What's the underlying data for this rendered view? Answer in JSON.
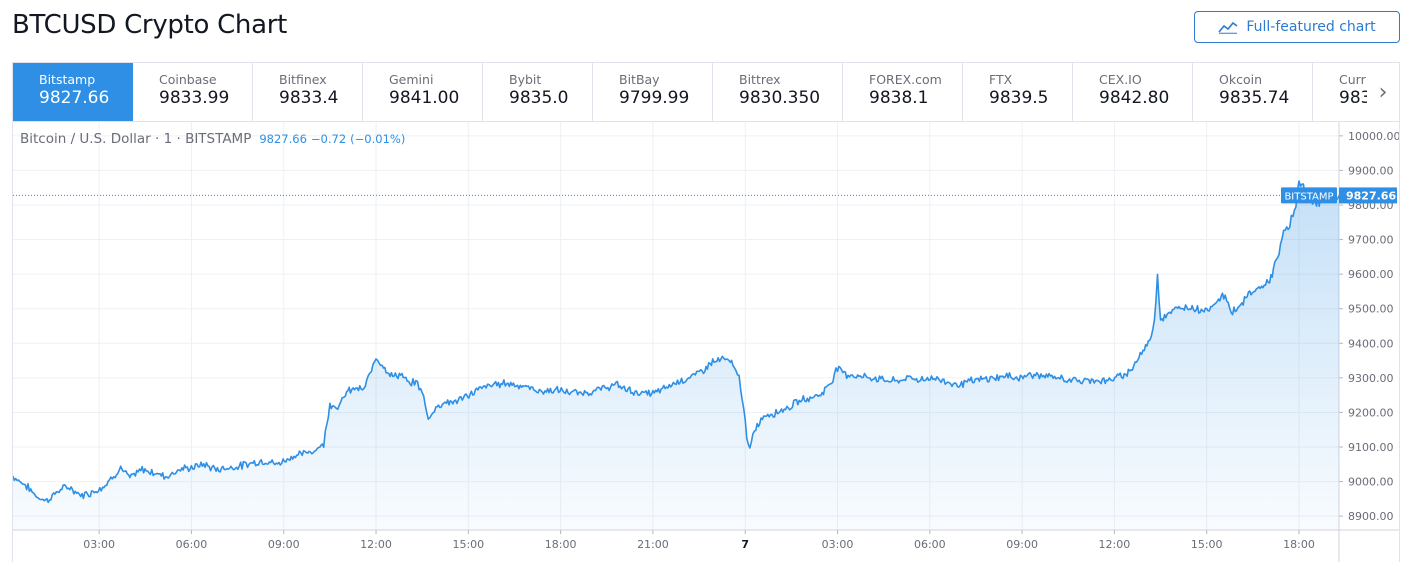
{
  "page": {
    "title": "BTCUSD Crypto Chart",
    "full_chart_label": "Full-featured chart"
  },
  "exchanges": [
    {
      "name": "Bitstamp",
      "price": "9827.66",
      "active": true
    },
    {
      "name": "Coinbase",
      "price": "9833.99"
    },
    {
      "name": "Bitfinex",
      "price": "9833.4"
    },
    {
      "name": "Gemini",
      "price": "9841.00"
    },
    {
      "name": "Bybit",
      "price": "9835.0"
    },
    {
      "name": "BitBay",
      "price": "9799.99"
    },
    {
      "name": "Bittrex",
      "price": "9830.350"
    },
    {
      "name": "FOREX.com",
      "price": "9838.1"
    },
    {
      "name": "FTX",
      "price": "9839.5"
    },
    {
      "name": "CEX.IO",
      "price": "9842.80"
    },
    {
      "name": "Okcoin",
      "price": "9835.74"
    },
    {
      "name": "Curr",
      "price": "983"
    }
  ],
  "legend": {
    "symbol": "Bitcoin / U.S. Dollar · 1 · BITSTAMP",
    "last": "9827.66",
    "change": "−0.72",
    "change_pct": "(−0.01%)"
  },
  "colors": {
    "accent": "#2e8fe4",
    "line": "#2e8fe4",
    "grid": "#f0f3fa",
    "axis_text": "#6a6d78"
  },
  "icons": {
    "chart_button": "line-chart-icon",
    "tabs_next": "chevron-right-icon"
  },
  "chart_data": {
    "type": "area",
    "title": "",
    "xlabel": "",
    "ylabel": "",
    "ylim": [
      8860,
      10040
    ],
    "y_ticks": [
      "10000.00",
      "9900.00",
      "9800.00",
      "9700.00",
      "9600.00",
      "9500.00",
      "9400.00",
      "9300.00",
      "9200.00",
      "9100.00",
      "9000.00",
      "8900.00"
    ],
    "x_ticks": [
      {
        "t": 3,
        "label": "03:00"
      },
      {
        "t": 6,
        "label": "06:00"
      },
      {
        "t": 9,
        "label": "09:00"
      },
      {
        "t": 12,
        "label": "12:00"
      },
      {
        "t": 15,
        "label": "15:00"
      },
      {
        "t": 18,
        "label": "18:00"
      },
      {
        "t": 21,
        "label": "21:00"
      },
      {
        "t": 24,
        "label": "7",
        "bold": true
      },
      {
        "t": 27,
        "label": "03:00"
      },
      {
        "t": 30,
        "label": "06:00"
      },
      {
        "t": 33,
        "label": "09:00"
      },
      {
        "t": 36,
        "label": "12:00"
      },
      {
        "t": 39,
        "label": "15:00"
      },
      {
        "t": 42,
        "label": "18:00"
      }
    ],
    "x_range_hours": [
      0.2,
      43.3
    ],
    "series": [
      {
        "color": "#2e8fe4",
        "points": [
          [
            0.2,
            9015
          ],
          [
            0.6,
            8990
          ],
          [
            1.0,
            8955
          ],
          [
            1.3,
            8945
          ],
          [
            1.7,
            8975
          ],
          [
            2.0,
            8985
          ],
          [
            2.4,
            8960
          ],
          [
            2.8,
            8970
          ],
          [
            3.2,
            8990
          ],
          [
            3.7,
            9040
          ],
          [
            4.0,
            9010
          ],
          [
            4.4,
            9035
          ],
          [
            4.8,
            9025
          ],
          [
            5.2,
            9015
          ],
          [
            5.6,
            9035
          ],
          [
            6.0,
            9040
          ],
          [
            6.4,
            9050
          ],
          [
            6.8,
            9035
          ],
          [
            7.2,
            9040
          ],
          [
            7.6,
            9045
          ],
          [
            8.0,
            9055
          ],
          [
            8.4,
            9060
          ],
          [
            8.8,
            9050
          ],
          [
            9.2,
            9070
          ],
          [
            9.6,
            9080
          ],
          [
            10.0,
            9090
          ],
          [
            10.3,
            9110
          ],
          [
            10.5,
            9225
          ],
          [
            10.8,
            9215
          ],
          [
            11.0,
            9255
          ],
          [
            11.3,
            9270
          ],
          [
            11.6,
            9265
          ],
          [
            11.8,
            9310
          ],
          [
            12.0,
            9360
          ],
          [
            12.2,
            9340
          ],
          [
            12.5,
            9305
          ],
          [
            12.8,
            9310
          ],
          [
            13.1,
            9280
          ],
          [
            13.3,
            9290
          ],
          [
            13.5,
            9260
          ],
          [
            13.7,
            9180
          ],
          [
            13.9,
            9210
          ],
          [
            14.2,
            9230
          ],
          [
            14.5,
            9230
          ],
          [
            14.8,
            9240
          ],
          [
            15.1,
            9255
          ],
          [
            15.4,
            9270
          ],
          [
            15.8,
            9280
          ],
          [
            16.2,
            9285
          ],
          [
            16.6,
            9280
          ],
          [
            17.0,
            9270
          ],
          [
            17.4,
            9260
          ],
          [
            17.8,
            9265
          ],
          [
            18.2,
            9260
          ],
          [
            18.6,
            9255
          ],
          [
            19.0,
            9260
          ],
          [
            19.4,
            9270
          ],
          [
            19.8,
            9280
          ],
          [
            20.2,
            9265
          ],
          [
            20.6,
            9255
          ],
          [
            21.0,
            9255
          ],
          [
            21.4,
            9270
          ],
          [
            21.8,
            9290
          ],
          [
            22.2,
            9300
          ],
          [
            22.6,
            9320
          ],
          [
            22.9,
            9345
          ],
          [
            23.3,
            9355
          ],
          [
            23.6,
            9340
          ],
          [
            23.8,
            9300
          ],
          [
            23.95,
            9220
          ],
          [
            24.05,
            9120
          ],
          [
            24.15,
            9090
          ],
          [
            24.3,
            9150
          ],
          [
            24.6,
            9190
          ],
          [
            25.0,
            9200
          ],
          [
            25.4,
            9215
          ],
          [
            25.8,
            9235
          ],
          [
            26.2,
            9245
          ],
          [
            26.5,
            9255
          ],
          [
            26.8,
            9290
          ],
          [
            27.0,
            9330
          ],
          [
            27.3,
            9310
          ],
          [
            27.7,
            9305
          ],
          [
            28.1,
            9300
          ],
          [
            28.5,
            9295
          ],
          [
            28.9,
            9290
          ],
          [
            29.3,
            9300
          ],
          [
            29.7,
            9295
          ],
          [
            30.1,
            9300
          ],
          [
            30.5,
            9290
          ],
          [
            30.9,
            9280
          ],
          [
            31.3,
            9290
          ],
          [
            31.7,
            9295
          ],
          [
            32.1,
            9300
          ],
          [
            32.5,
            9305
          ],
          [
            32.9,
            9300
          ],
          [
            33.3,
            9310
          ],
          [
            33.7,
            9305
          ],
          [
            34.1,
            9300
          ],
          [
            34.5,
            9295
          ],
          [
            34.9,
            9290
          ],
          [
            35.3,
            9295
          ],
          [
            35.7,
            9290
          ],
          [
            36.1,
            9300
          ],
          [
            36.5,
            9320
          ],
          [
            36.8,
            9360
          ],
          [
            37.1,
            9400
          ],
          [
            37.3,
            9460
          ],
          [
            37.4,
            9600
          ],
          [
            37.5,
            9470
          ],
          [
            37.8,
            9490
          ],
          [
            38.1,
            9500
          ],
          [
            38.4,
            9505
          ],
          [
            38.7,
            9500
          ],
          [
            39.0,
            9495
          ],
          [
            39.3,
            9520
          ],
          [
            39.6,
            9540
          ],
          [
            39.8,
            9490
          ],
          [
            40.1,
            9510
          ],
          [
            40.4,
            9545
          ],
          [
            40.7,
            9560
          ],
          [
            41.0,
            9575
          ],
          [
            41.3,
            9640
          ],
          [
            41.5,
            9720
          ],
          [
            41.7,
            9740
          ],
          [
            41.9,
            9800
          ],
          [
            42.0,
            9880
          ],
          [
            42.1,
            9850
          ],
          [
            42.4,
            9820
          ],
          [
            42.7,
            9810
          ],
          [
            43.0,
            9830
          ],
          [
            43.3,
            9827.66
          ]
        ]
      }
    ],
    "last_value": 9827.66,
    "last_label": "BITSTAMP",
    "last_price_text": "9827.66"
  }
}
